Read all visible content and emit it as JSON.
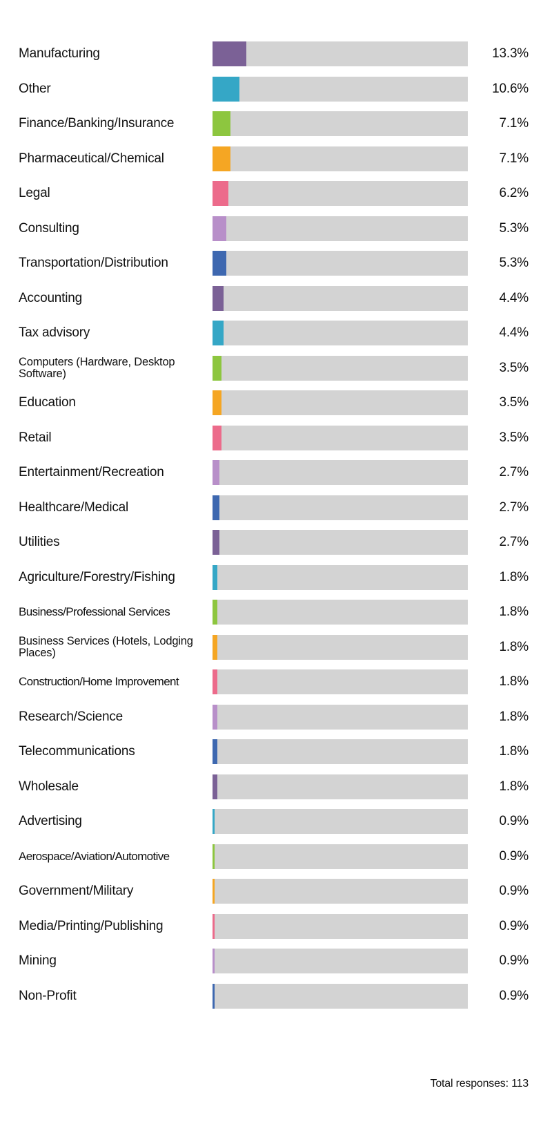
{
  "chart_data": {
    "type": "bar",
    "orientation": "horizontal",
    "xlim": [
      0,
      100
    ],
    "categories": [
      "Manufacturing",
      "Other",
      "Finance/Banking/Insurance",
      "Pharmaceutical/Chemical",
      "Legal",
      "Consulting",
      "Transportation/Distribution",
      "Accounting",
      "Tax advisory",
      "Computers (Hardware, Desktop Software)",
      "Education",
      "Retail",
      "Entertainment/Recreation",
      "Healthcare/Medical",
      "Utilities",
      "Agriculture/Forestry/Fishing",
      "Business/Professional Services",
      "Business Services (Hotels, Lodging Places)",
      "Construction/Home Improvement",
      "Research/Science",
      "Telecommunications",
      "Wholesale",
      "Advertising",
      "Aerospace/Aviation/Automotive",
      "Government/Military",
      "Media/Printing/Publishing",
      "Mining",
      "Non-Profit"
    ],
    "values": [
      13.3,
      10.6,
      7.1,
      7.1,
      6.2,
      5.3,
      5.3,
      4.4,
      4.4,
      3.5,
      3.5,
      3.5,
      2.7,
      2.7,
      2.7,
      1.8,
      1.8,
      1.8,
      1.8,
      1.8,
      1.8,
      1.8,
      0.9,
      0.9,
      0.9,
      0.9,
      0.9,
      0.9
    ],
    "value_labels": [
      "13.3%",
      "10.6%",
      "7.1%",
      "7.1%",
      "6.2%",
      "5.3%",
      "5.3%",
      "4.4%",
      "4.4%",
      "3.5%",
      "3.5%",
      "3.5%",
      "2.7%",
      "2.7%",
      "2.7%",
      "1.8%",
      "1.8%",
      "1.8%",
      "1.8%",
      "1.8%",
      "1.8%",
      "1.8%",
      "0.9%",
      "0.9%",
      "0.9%",
      "0.9%",
      "0.9%",
      "0.9%"
    ],
    "colors": [
      "#7b6196",
      "#35a7c6",
      "#8dc63f",
      "#f5a623",
      "#ec6b8b",
      "#b88fc9",
      "#3e68b0"
    ],
    "track_color": "#d3d3d3",
    "total_label": "Total responses: 113"
  }
}
